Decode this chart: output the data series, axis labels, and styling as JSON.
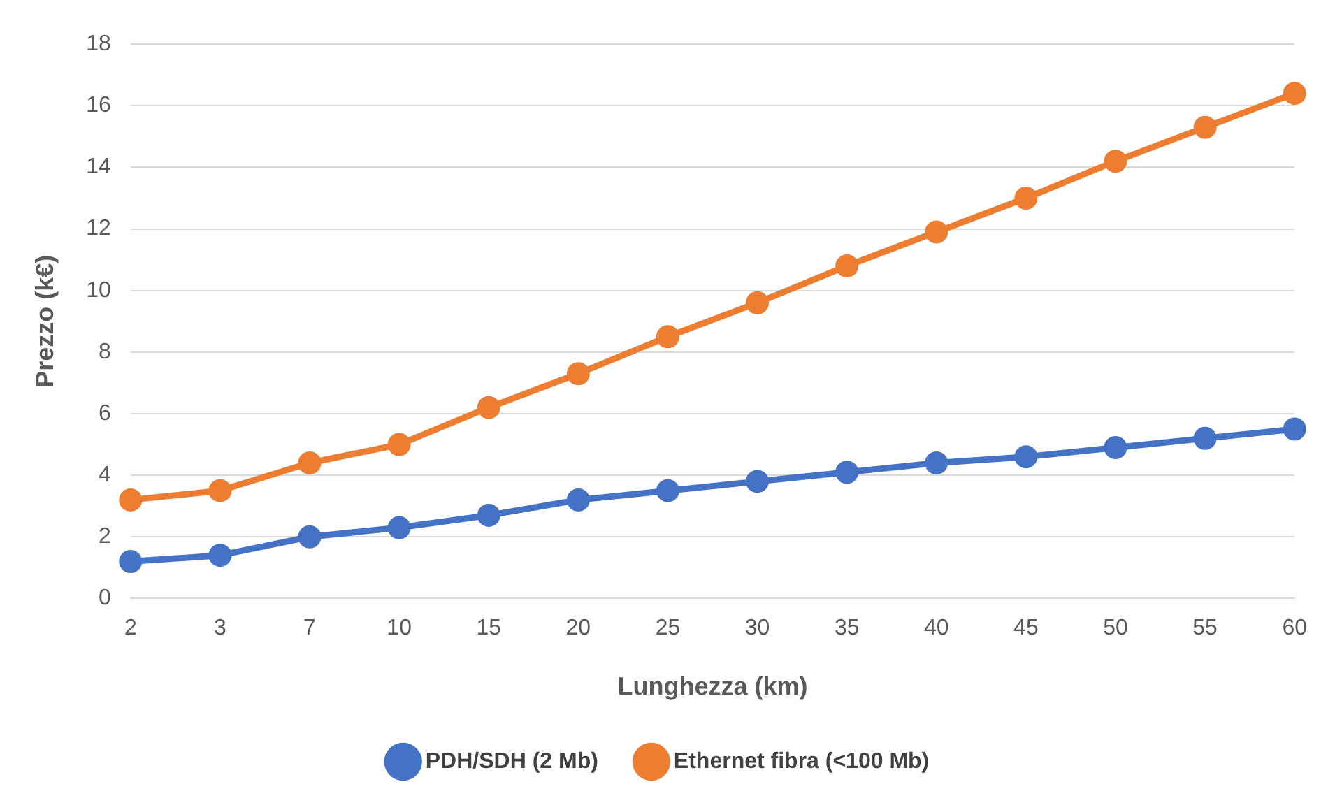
{
  "chart_data": {
    "type": "line",
    "xlabel": "Lunghezza (km)",
    "ylabel": "Prezzo (k€)",
    "categories": [
      "2",
      "3",
      "7",
      "10",
      "15",
      "20",
      "25",
      "30",
      "35",
      "40",
      "45",
      "50",
      "55",
      "60"
    ],
    "series": [
      {
        "name": "PDH/SDH (2 Mb)",
        "color": "#4472c4",
        "values": [
          1.2,
          1.4,
          2.0,
          2.3,
          2.7,
          3.2,
          3.5,
          3.8,
          4.1,
          4.4,
          4.6,
          4.9,
          5.2,
          5.5
        ]
      },
      {
        "name": "Ethernet fibra (<100 Mb)",
        "color": "#ed7d31",
        "values": [
          3.2,
          3.5,
          4.4,
          5.0,
          6.2,
          7.3,
          8.5,
          9.6,
          10.8,
          11.9,
          13.0,
          14.2,
          15.3,
          16.4
        ]
      }
    ],
    "ylim": [
      0,
      18
    ],
    "yticks": [
      0,
      2,
      4,
      6,
      8,
      10,
      12,
      14,
      16,
      18
    ],
    "grid": "y",
    "legend": "bottom",
    "marker": "circle",
    "line_style": "solid"
  }
}
